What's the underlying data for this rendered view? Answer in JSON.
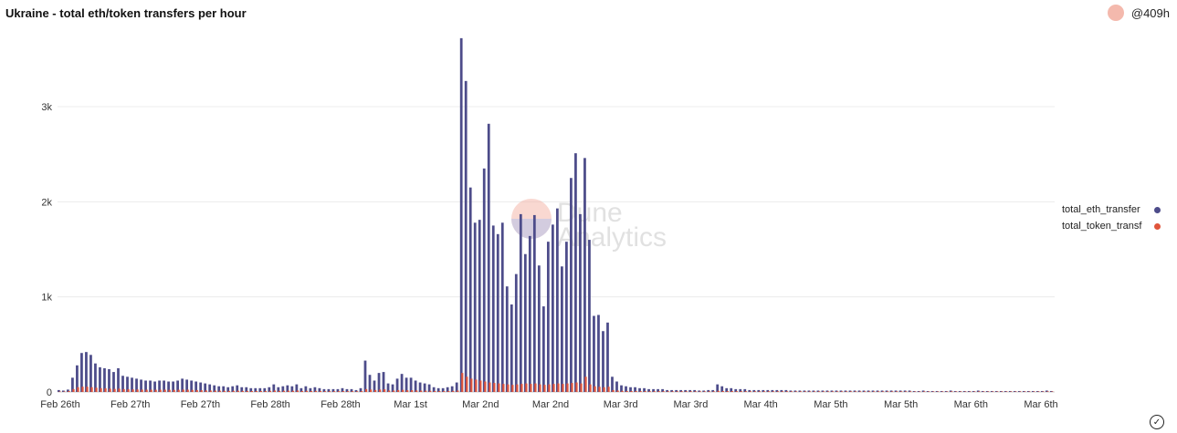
{
  "header": {
    "title": "Ukraine - total eth/token transfers per hour",
    "author": "@409h"
  },
  "watermark": {
    "line1": "Dune",
    "line2": "Analytics"
  },
  "colors": {
    "eth": "#4d4c8a",
    "token": "#e0553b",
    "grid": "#ececec",
    "avatar": "#f4b9ad"
  },
  "chart_data": {
    "type": "bar",
    "x_tick_labels": [
      "Feb 26th",
      "Feb 27th",
      "Feb 27th",
      "Feb 28th",
      "Feb 28th",
      "Mar 1st",
      "Mar 2nd",
      "Mar 2nd",
      "Mar 3rd",
      "Mar 3rd",
      "Mar 4th",
      "Mar 5th",
      "Mar 5th",
      "Mar 6th",
      "Mar 6th"
    ],
    "y_ticks": [
      0,
      1000,
      2000,
      3000
    ],
    "y_tick_labels": [
      "0",
      "1k",
      "2k",
      "3k"
    ],
    "ylim": [
      0,
      3800
    ],
    "grid": true,
    "legend_position": "right",
    "series": [
      {
        "name": "total_eth_transfer",
        "color": "#4d4c8a",
        "values": [
          20,
          15,
          25,
          150,
          280,
          410,
          420,
          390,
          300,
          260,
          250,
          240,
          210,
          250,
          170,
          160,
          150,
          140,
          130,
          120,
          120,
          110,
          120,
          120,
          110,
          110,
          120,
          140,
          130,
          120,
          110,
          100,
          90,
          80,
          70,
          60,
          60,
          50,
          60,
          70,
          50,
          50,
          40,
          40,
          40,
          40,
          50,
          80,
          50,
          60,
          70,
          60,
          80,
          40,
          60,
          40,
          50,
          40,
          30,
          30,
          30,
          30,
          40,
          30,
          30,
          20,
          40,
          330,
          180,
          120,
          200,
          210,
          90,
          80,
          140,
          190,
          150,
          150,
          120,
          100,
          90,
          80,
          50,
          40,
          40,
          50,
          60,
          100,
          3720,
          3270,
          2150,
          1780,
          1810,
          2350,
          2820,
          1750,
          1660,
          1780,
          1110,
          920,
          1240,
          1870,
          1450,
          1640,
          1860,
          1330,
          900,
          1580,
          1760,
          1930,
          1320,
          1580,
          2250,
          2510,
          1870,
          2460,
          1600,
          800,
          810,
          640,
          730,
          160,
          110,
          70,
          60,
          50,
          50,
          40,
          40,
          30,
          30,
          30,
          30,
          20,
          20,
          20,
          20,
          20,
          20,
          20,
          15,
          15,
          20,
          20,
          80,
          60,
          40,
          40,
          30,
          30,
          30,
          20,
          20,
          20,
          20,
          20,
          20,
          20,
          20,
          20,
          15,
          15,
          15,
          15,
          15,
          15,
          15,
          15,
          15,
          15,
          15,
          15,
          15,
          15,
          15,
          15,
          15,
          15,
          15,
          15,
          15,
          15,
          15,
          15,
          15,
          15,
          15,
          10,
          10,
          15,
          10,
          10,
          10,
          10,
          10,
          15,
          10,
          10,
          10,
          10,
          10,
          15,
          10,
          10,
          10,
          10,
          10,
          10,
          10,
          10,
          10,
          10,
          10,
          10,
          10,
          10,
          15,
          10
        ]
      },
      {
        "name": "total_token_transf",
        "color": "#e0553b",
        "values": [
          5,
          5,
          10,
          30,
          50,
          55,
          55,
          50,
          45,
          40,
          38,
          35,
          32,
          35,
          30,
          28,
          27,
          26,
          25,
          24,
          24,
          23,
          24,
          24,
          23,
          22,
          23,
          25,
          24,
          22,
          20,
          18,
          16,
          15,
          14,
          13,
          12,
          11,
          12,
          13,
          11,
          11,
          10,
          10,
          10,
          10,
          11,
          15,
          11,
          12,
          13,
          12,
          15,
          10,
          12,
          10,
          11,
          10,
          8,
          8,
          8,
          8,
          9,
          8,
          8,
          7,
          9,
          30,
          25,
          20,
          25,
          28,
          15,
          14,
          20,
          22,
          18,
          18,
          16,
          14,
          13,
          12,
          10,
          9,
          9,
          10,
          11,
          15,
          200,
          160,
          140,
          130,
          120,
          110,
          100,
          95,
          90,
          85,
          80,
          75,
          80,
          85,
          90,
          85,
          90,
          80,
          75,
          80,
          85,
          90,
          85,
          90,
          95,
          100,
          90,
          160,
          80,
          60,
          55,
          50,
          55,
          20,
          15,
          12,
          10,
          10,
          10,
          9,
          9,
          8,
          8,
          8,
          8,
          7,
          7,
          7,
          7,
          7,
          7,
          7,
          6,
          6,
          7,
          7,
          12,
          10,
          9,
          9,
          8,
          8,
          8,
          7,
          7,
          7,
          7,
          7,
          7,
          7,
          7,
          7,
          6,
          6,
          6,
          6,
          6,
          6,
          6,
          6,
          6,
          6,
          6,
          6,
          6,
          6,
          6,
          6,
          6,
          6,
          6,
          6,
          6,
          6,
          6,
          6,
          6,
          6,
          6,
          5,
          5,
          6,
          5,
          5,
          5,
          5,
          5,
          6,
          5,
          5,
          5,
          5,
          5,
          6,
          5,
          5,
          5,
          5,
          5,
          5,
          5,
          5,
          5,
          5,
          5,
          5,
          5,
          5,
          6,
          5
        ]
      }
    ]
  }
}
